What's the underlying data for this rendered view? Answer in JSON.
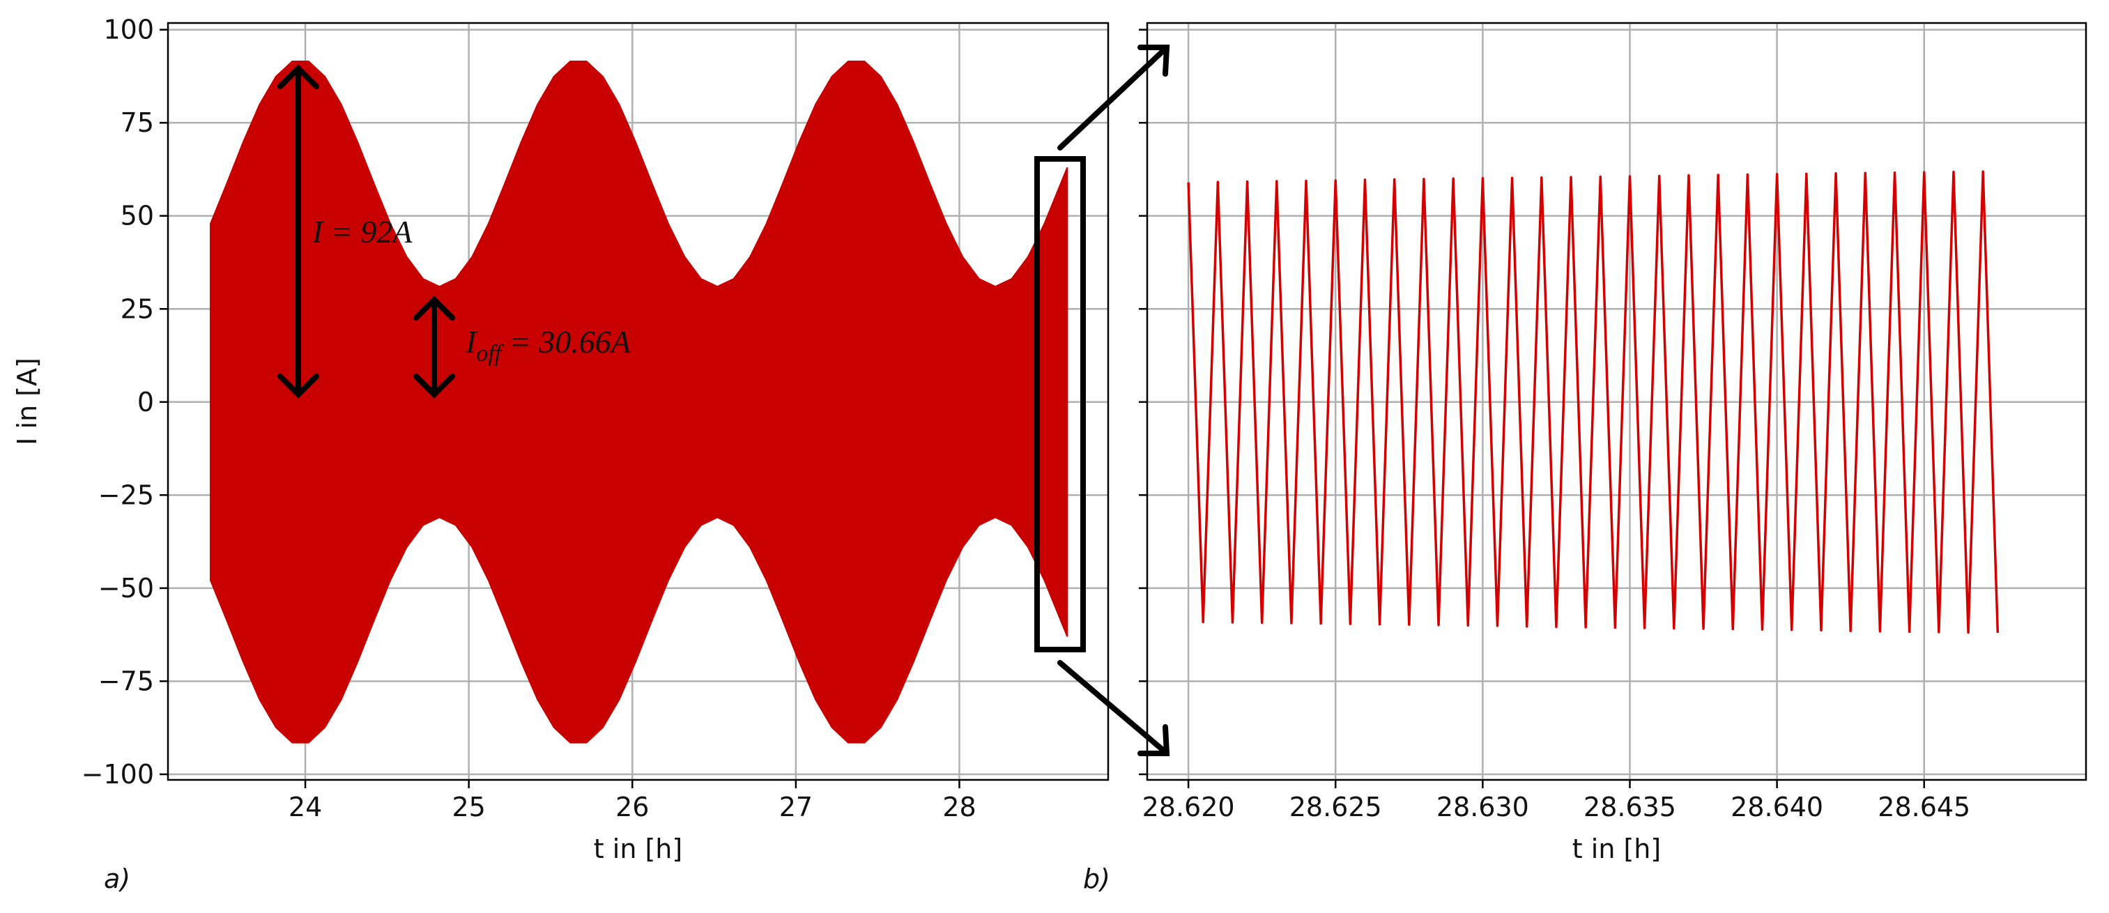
{
  "chart_data": [
    {
      "type": "band",
      "panel_label": "a)",
      "xlabel": "t in [h]",
      "ylabel": "I in [A]",
      "color": "#c80000",
      "grid": true,
      "xlim": [
        23.16,
        28.91
      ],
      "ylim": [
        -101.5,
        101.8
      ],
      "xticks": [
        24,
        25,
        26,
        27,
        28
      ],
      "yticks": [
        {
          "value": -100,
          "label": "−100"
        },
        {
          "value": -75,
          "label": "−75"
        },
        {
          "value": -50,
          "label": "−50"
        },
        {
          "value": -25,
          "label": "−25"
        },
        0,
        25,
        50,
        75,
        100
      ],
      "x": [
        23.42,
        23.52,
        23.62,
        23.72,
        23.82,
        23.92,
        24.02,
        24.12,
        24.22,
        24.32,
        24.42,
        24.52,
        24.62,
        24.72,
        24.82,
        24.92,
        25.02,
        25.12,
        25.22,
        25.32,
        25.42,
        25.52,
        25.62,
        25.72,
        25.82,
        25.92,
        26.02,
        26.12,
        26.22,
        26.32,
        26.42,
        26.52,
        26.62,
        26.72,
        26.82,
        26.92,
        27.02,
        27.12,
        27.22,
        27.32,
        27.42,
        27.52,
        27.62,
        27.72,
        27.82,
        27.92,
        28.02,
        28.12,
        28.22,
        28.32,
        28.42,
        28.52,
        28.62,
        28.66
      ],
      "upper": [
        47.9,
        58.7,
        69.8,
        79.9,
        87.4,
        91.5,
        91.5,
        87.4,
        79.9,
        69.8,
        58.7,
        47.9,
        39.0,
        33.1,
        31.0,
        33.1,
        39.0,
        47.9,
        58.7,
        69.8,
        79.9,
        87.4,
        91.5,
        91.5,
        87.4,
        79.9,
        69.8,
        58.7,
        47.9,
        39.0,
        33.1,
        31.0,
        33.1,
        39.0,
        47.9,
        58.7,
        69.8,
        79.9,
        87.4,
        91.5,
        91.5,
        87.4,
        79.9,
        69.8,
        58.7,
        47.9,
        39.0,
        33.1,
        31.0,
        33.1,
        39.0,
        47.9,
        58.7,
        63.0
      ],
      "lower": [
        -47.9,
        -58.7,
        -69.8,
        -79.9,
        -87.4,
        -91.5,
        -91.5,
        -87.4,
        -79.9,
        -69.8,
        -58.7,
        -47.9,
        -39.0,
        -33.1,
        -31.0,
        -33.1,
        -39.0,
        -47.9,
        -58.7,
        -69.8,
        -79.9,
        -87.4,
        -91.5,
        -91.5,
        -87.4,
        -79.9,
        -69.8,
        -58.7,
        -47.9,
        -39.0,
        -33.1,
        -31.0,
        -33.1,
        -39.0,
        -47.9,
        -58.7,
        -69.8,
        -79.9,
        -87.4,
        -91.5,
        -91.5,
        -87.4,
        -79.9,
        -69.8,
        -58.7,
        -47.9,
        -39.0,
        -33.1,
        -31.0,
        -33.1,
        -39.0,
        -47.9,
        -58.7,
        -63.0
      ],
      "annotations": [
        {
          "text": "I = 92A"
        },
        {
          "text": "I",
          "sub": "off",
          "rest": " = 30.66A"
        }
      ]
    },
    {
      "type": "line",
      "panel_label": "b)",
      "xlabel": "t in [h]",
      "color": "#d40000",
      "grid": true,
      "ytick_labels": false,
      "xlim": [
        28.6186,
        28.6505
      ],
      "ylim": [
        -101.5,
        101.8
      ],
      "xticks": [
        {
          "value": 28.62,
          "label": "28.620"
        },
        {
          "value": 28.625,
          "label": "28.625"
        },
        {
          "value": 28.63,
          "label": "28.630"
        },
        {
          "value": 28.635,
          "label": "28.635"
        },
        {
          "value": 28.64,
          "label": "28.640"
        },
        {
          "value": 28.645,
          "label": "28.645"
        }
      ],
      "yticks": [
        -100,
        -75,
        -50,
        -25,
        0,
        25,
        50,
        75,
        100
      ],
      "x": [
        28.62,
        28.6205,
        28.621,
        28.6215,
        28.622,
        28.6225,
        28.623,
        28.6235,
        28.624,
        28.6245,
        28.625,
        28.6255,
        28.626,
        28.6265,
        28.627,
        28.6275,
        28.628,
        28.6285,
        28.629,
        28.6295,
        28.63,
        28.6305,
        28.631,
        28.6315,
        28.632,
        28.6325,
        28.633,
        28.6335,
        28.634,
        28.6345,
        28.635,
        28.6355,
        28.636,
        28.6365,
        28.637,
        28.6375,
        28.638,
        28.6385,
        28.639,
        28.6395,
        28.64,
        28.6405,
        28.641,
        28.6415,
        28.642,
        28.6425,
        28.643,
        28.6435,
        28.644,
        28.6445,
        28.645,
        28.6455,
        28.646,
        28.6465,
        28.647,
        28.6475
      ],
      "values": [
        59.0,
        -59.1,
        59.1,
        -59.2,
        59.2,
        -59.3,
        59.3,
        -59.4,
        59.4,
        -59.5,
        59.5,
        -59.6,
        59.7,
        -59.7,
        59.8,
        -59.8,
        59.9,
        -59.9,
        60.0,
        -60.0,
        60.1,
        -60.1,
        60.2,
        -60.3,
        60.3,
        -60.4,
        60.4,
        -60.5,
        60.5,
        -60.6,
        60.6,
        -60.7,
        60.7,
        -60.8,
        60.9,
        -60.9,
        61.0,
        -61.0,
        61.1,
        -61.1,
        61.2,
        -61.2,
        61.3,
        -61.3,
        61.4,
        -61.5,
        61.5,
        -61.6,
        61.6,
        -61.7,
        61.7,
        -61.8,
        61.8,
        -61.9,
        61.9,
        -62.0
      ]
    }
  ]
}
